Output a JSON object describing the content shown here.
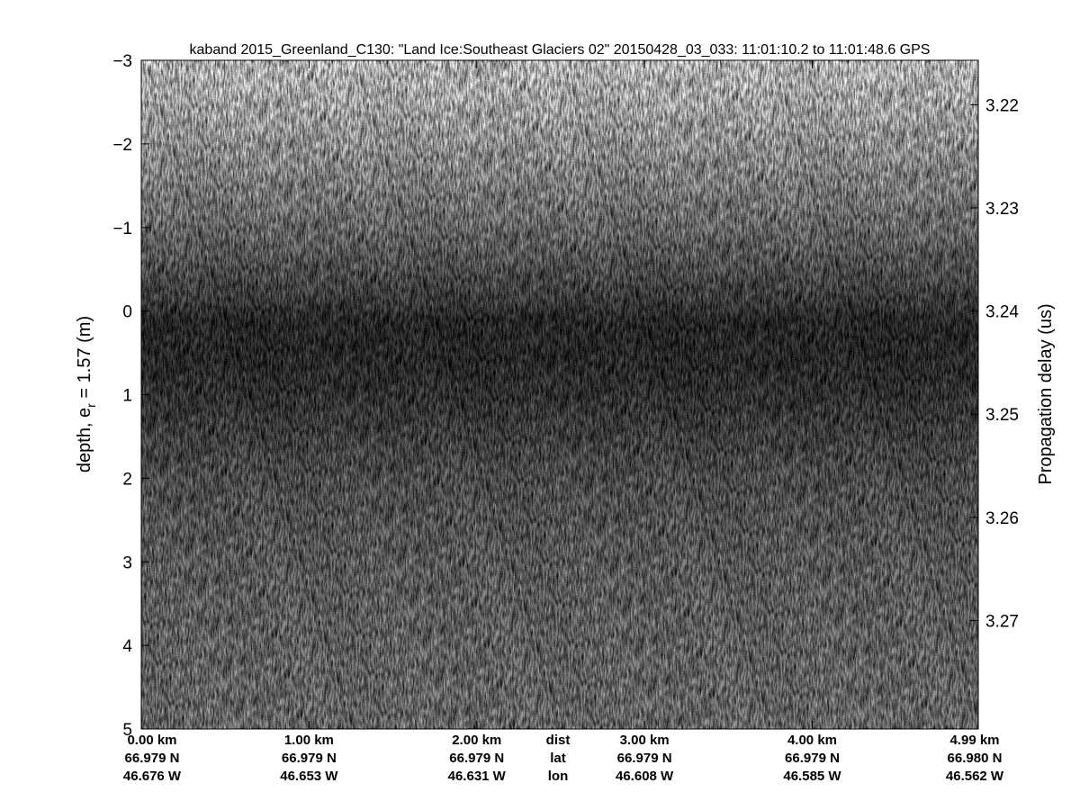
{
  "chart_data": {
    "type": "heatmap",
    "title": "kaband 2015_Greenland_C130: \"Land Ice:Southeast  Glaciers 02\"  20150428_03_033: 11:01:10.2 to 11:01:48.6 GPS",
    "ylabel_left": "depth, e",
    "ylabel_left_sub": "r",
    "ylabel_left_suffix": " = 1.57 (m)",
    "ylabel_right": "Propagation delay (us)",
    "ylim": [
      -3,
      5
    ],
    "y_reversed": true,
    "yticks_left": [
      -3,
      -2,
      -1,
      0,
      1,
      2,
      3,
      4,
      5
    ],
    "yticks_left_labels": [
      "−3",
      "−2",
      "−1",
      "0",
      "1",
      "2",
      "3",
      "4",
      "5"
    ],
    "yticks_right": [
      3.22,
      3.23,
      3.24,
      3.25,
      3.26,
      3.27
    ],
    "yticks_right_labels": [
      "3.22",
      "3.23",
      "3.24",
      "3.25",
      "3.26",
      "3.27"
    ],
    "right_axis_depth_at_3_24": 0,
    "xlim_km": [
      0,
      4.99
    ],
    "xticks_km": [
      0,
      1,
      2,
      3,
      4,
      4.99
    ],
    "x_rows": [
      {
        "name": "dist",
        "labels": [
          "0.00 km",
          "1.00 km",
          "2.00 km",
          "3.00 km",
          "4.00 km",
          "4.99 km"
        ]
      },
      {
        "name": "lat",
        "labels": [
          "66.979 N",
          "66.979 N",
          "66.979 N",
          "66.979 N",
          "66.979 N",
          "66.980 N"
        ]
      },
      {
        "name": "lon",
        "labels": [
          "46.676 W",
          "46.653 W",
          "46.631 W",
          "46.608 W",
          "46.585 W",
          "46.562 W"
        ]
      }
    ],
    "colormap": "gray",
    "grid": false
  }
}
